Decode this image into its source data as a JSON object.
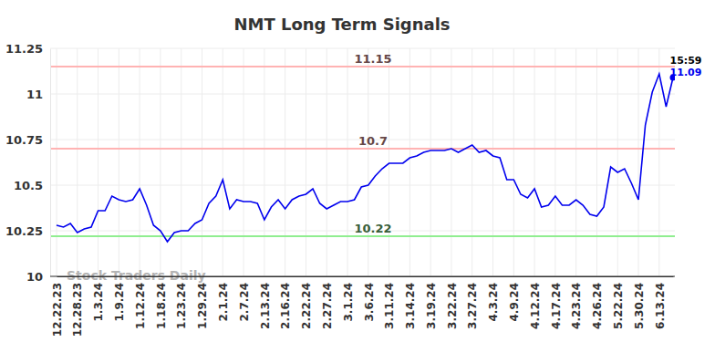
{
  "chart_data": {
    "type": "line",
    "title": "NMT Long Term Signals",
    "watermark": "Stock Traders Daily",
    "annotation": "15:59",
    "color": "#0000ee",
    "grid": true,
    "ylim": [
      10,
      11.25
    ],
    "yticks": [
      10,
      10.25,
      10.5,
      10.75,
      11,
      11.25
    ],
    "reference_lines": [
      {
        "value": 11.15,
        "color": "#ffb3b3"
      },
      {
        "value": 10.7,
        "color": "#ffb3b3"
      },
      {
        "value": 10.22,
        "color": "#90ee90"
      }
    ],
    "categories": [
      "12.22.23",
      null,
      null,
      "12.28.23",
      null,
      null,
      "1.3.24",
      null,
      null,
      "1.9.24",
      null,
      null,
      "1.12.24",
      null,
      null,
      "1.18.24",
      null,
      null,
      "1.23.24",
      null,
      null,
      "1.29.24",
      null,
      null,
      "2.1.24",
      null,
      null,
      "2.7.24",
      null,
      null,
      "2.13.24",
      null,
      null,
      "2.16.24",
      null,
      null,
      "2.22.24",
      null,
      null,
      "2.27.24",
      null,
      null,
      "3.1.24",
      null,
      null,
      "3.6.24",
      null,
      null,
      "3.11.24",
      null,
      null,
      "3.14.24",
      null,
      null,
      "3.19.24",
      null,
      null,
      "3.22.24",
      null,
      null,
      "3.27.24",
      null,
      null,
      "4.3.24",
      null,
      null,
      "4.9.24",
      null,
      null,
      "4.12.24",
      null,
      null,
      "4.17.24",
      null,
      null,
      "4.23.24",
      null,
      null,
      "4.26.24",
      null,
      null,
      "5.22.24",
      null,
      null,
      "5.30.24",
      null,
      null,
      "6.13.24",
      null,
      null
    ],
    "values": [
      10.28,
      10.27,
      10.29,
      10.24,
      10.26,
      10.27,
      10.36,
      10.36,
      10.44,
      10.42,
      10.41,
      10.42,
      10.48,
      10.39,
      10.28,
      10.25,
      10.19,
      10.24,
      10.25,
      10.25,
      10.29,
      10.31,
      10.4,
      10.44,
      10.53,
      10.37,
      10.42,
      10.41,
      10.41,
      10.4,
      10.31,
      10.38,
      10.42,
      10.37,
      10.42,
      10.44,
      10.45,
      10.48,
      10.4,
      10.37,
      10.39,
      10.41,
      10.41,
      10.42,
      10.49,
      10.5,
      10.55,
      10.59,
      10.62,
      10.62,
      10.62,
      10.65,
      10.66,
      10.68,
      10.69,
      10.69,
      10.69,
      10.7,
      10.68,
      10.7,
      10.72,
      10.68,
      10.69,
      10.66,
      10.65,
      10.53,
      10.53,
      10.45,
      10.43,
      10.48,
      10.38,
      10.39,
      10.44,
      10.39,
      10.39,
      10.42,
      10.39,
      10.34,
      10.33,
      10.38,
      10.6,
      10.57,
      10.59,
      10.51,
      10.42,
      10.83,
      11.01,
      11.11,
      10.93,
      11.09
    ]
  }
}
